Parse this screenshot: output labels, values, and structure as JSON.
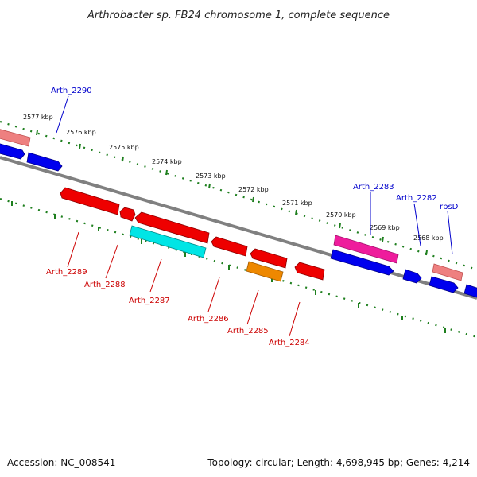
{
  "title": "Arthrobacter sp. FB24 chromosome 1, complete sequence",
  "footer": {
    "accession": "Accession: NC_008541",
    "summary": "Topology: circular; Length: 4,698,945 bp; Genes: 4,214"
  },
  "colors": {
    "backbone": "#808080",
    "tick_dots": "#1e7f1e",
    "forward_label": "#0000cc",
    "reverse_label": "#cc0000",
    "blue_gene": "#0000ee",
    "red_gene": "#ee0000",
    "pink_gene": "#ee1c9c",
    "salmon_gene": "#ee8080",
    "cyan_gene": "#00e5e5",
    "orange_gene": "#ee8800"
  },
  "ticks": [
    {
      "label": "2577 kbp"
    },
    {
      "label": "2576 kbp"
    },
    {
      "label": "2575 kbp"
    },
    {
      "label": "2574 kbp"
    },
    {
      "label": "2573 kbp"
    },
    {
      "label": "2572 kbp"
    },
    {
      "label": "2571 kbp"
    },
    {
      "label": "2570 kbp"
    },
    {
      "label": "2569 kbp"
    },
    {
      "label": "2568 kbp"
    }
  ],
  "forward_labels": [
    {
      "text": "Arth_2290"
    },
    {
      "text": "Arth_2283"
    },
    {
      "text": "Arth_2282"
    },
    {
      "text": "rpsD"
    }
  ],
  "reverse_labels": [
    {
      "text": "Arth_2289"
    },
    {
      "text": "Arth_2288"
    },
    {
      "text": "Arth_2287"
    },
    {
      "text": "Arth_2286"
    },
    {
      "text": "Arth_2285"
    },
    {
      "text": "Arth_2284"
    }
  ]
}
